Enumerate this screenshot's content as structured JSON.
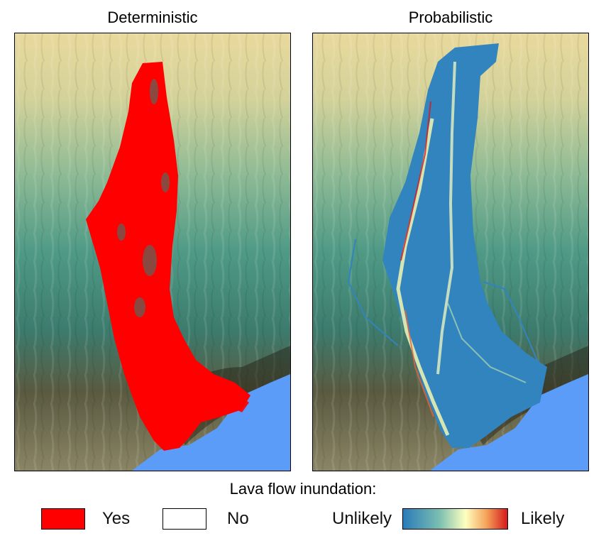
{
  "panels": [
    {
      "title": "Deterministic"
    },
    {
      "title": "Probabilistic"
    }
  ],
  "legend": {
    "title": "Lava flow inundation:",
    "yes_label": "Yes",
    "no_label": "No",
    "unlikely_label": "Unlikely",
    "likely_label": "Likely",
    "yes_color": "#ff0000",
    "no_color": "#ffffff"
  },
  "colors": {
    "sea": "#5b9cf9",
    "inundation_red": "#ff0000",
    "colormap": [
      "#2b7bba",
      "#7bbfb0",
      "#ffffbf",
      "#f4a259",
      "#d7191c"
    ]
  }
}
